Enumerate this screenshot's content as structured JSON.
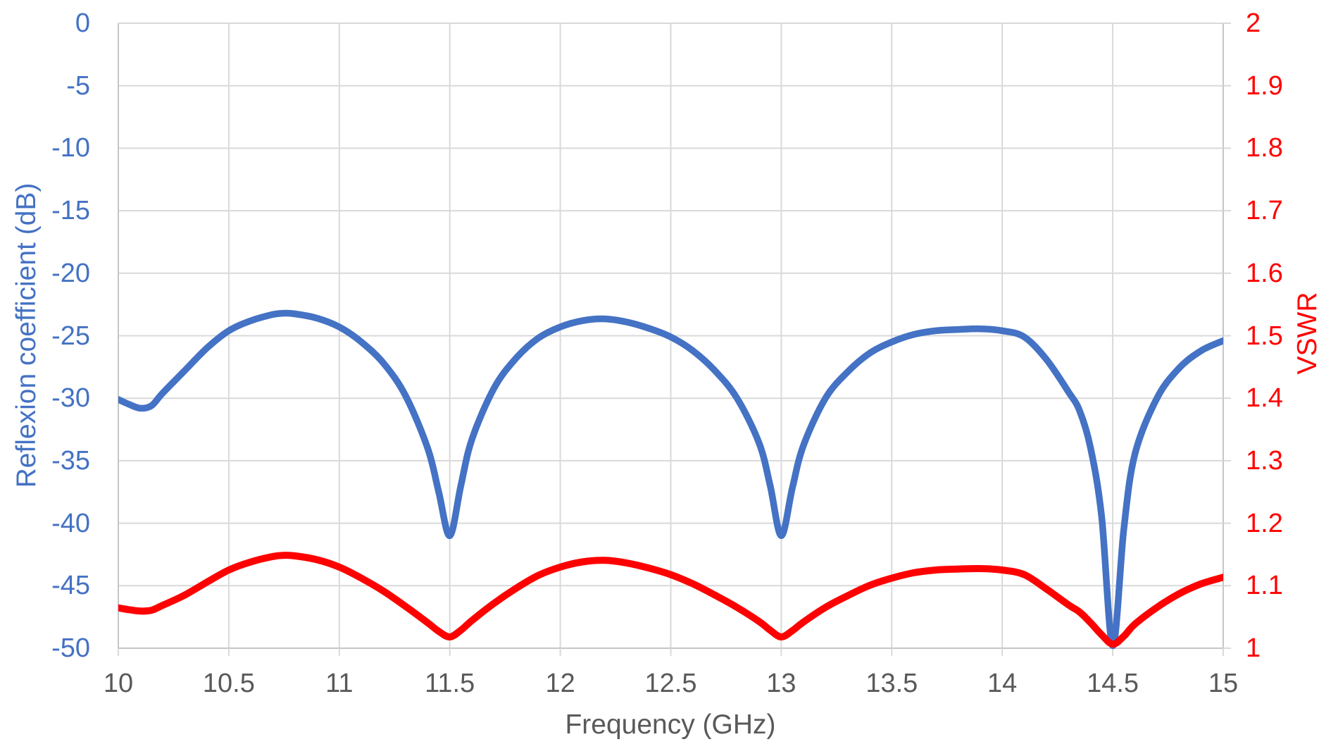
{
  "page": {
    "background": "#FFFFFF"
  },
  "chart_data": {
    "type": "line",
    "title": "",
    "grid": true,
    "legend": "none",
    "gridline_color": "#D9D9D9",
    "axis_line_color": "#C6C6C6",
    "x": {
      "title": "Frequency (GHz)",
      "min": 10,
      "max": 15,
      "tick_values": [
        10,
        10.5,
        11,
        11.5,
        12,
        12.5,
        13,
        13.5,
        14,
        14.5,
        15
      ],
      "tick_labels": [
        "10",
        "10.5",
        "11",
        "11.5",
        "12",
        "12.5",
        "13",
        "13.5",
        "14",
        "14.5",
        "15"
      ],
      "label_color": "#595959"
    },
    "y_left": {
      "title": "Reflexion coefficient (dB)",
      "min": -50,
      "max": 0,
      "tick_values": [
        0,
        -5,
        -10,
        -15,
        -20,
        -25,
        -30,
        -35,
        -40,
        -45,
        -50
      ],
      "tick_labels": [
        "0",
        "-5",
        "-10",
        "-15",
        "-20",
        "-25",
        "-30",
        "-35",
        "-40",
        "-45",
        "-50"
      ],
      "color": "#4472C4"
    },
    "y_right": {
      "title": "VSWR",
      "min": 1,
      "max": 2,
      "tick_values": [
        2,
        1.9,
        1.8,
        1.7,
        1.6,
        1.5,
        1.4,
        1.3,
        1.2,
        1.1,
        1
      ],
      "tick_labels": [
        "2",
        "1.9",
        "1.8",
        "1.7",
        "1.6",
        "1.5",
        "1.4",
        "1.3",
        "1.2",
        "1.1",
        "1"
      ],
      "color": "#FF0000"
    },
    "series": [
      {
        "name": "Reflexion coefficient (dB)",
        "axis": "left",
        "color": "#4472C4",
        "stroke_width": 9.5,
        "x": [
          10,
          10.05,
          10.1,
          10.15,
          10.2,
          10.3,
          10.4,
          10.5,
          10.6,
          10.7,
          10.75,
          10.8,
          10.9,
          11,
          11.1,
          11.2,
          11.3,
          11.4,
          11.45,
          11.5,
          11.55,
          11.6,
          11.7,
          11.8,
          11.9,
          12,
          12.1,
          12.2,
          12.3,
          12.4,
          12.5,
          12.6,
          12.7,
          12.8,
          12.9,
          12.95,
          13,
          13.05,
          13.1,
          13.2,
          13.3,
          13.4,
          13.5,
          13.6,
          13.7,
          13.8,
          13.9,
          14,
          14.1,
          14.2,
          14.3,
          14.35,
          14.4,
          14.45,
          14.5,
          14.55,
          14.6,
          14.7,
          14.8,
          14.9,
          15
        ],
        "y": [
          -30.1,
          -30.5,
          -30.8,
          -30.6,
          -29.6,
          -27.8,
          -26,
          -24.6,
          -23.8,
          -23.3,
          -23.2,
          -23.25,
          -23.6,
          -24.3,
          -25.5,
          -27.2,
          -29.8,
          -34,
          -37.5,
          -41,
          -37,
          -33.3,
          -29.2,
          -26.8,
          -25.2,
          -24.3,
          -23.8,
          -23.65,
          -23.9,
          -24.4,
          -25.1,
          -26.2,
          -27.8,
          -30,
          -33.6,
          -37,
          -41,
          -37.2,
          -33.8,
          -30,
          -27.9,
          -26.4,
          -25.5,
          -24.9,
          -24.6,
          -24.5,
          -24.45,
          -24.6,
          -25.1,
          -26.9,
          -29.5,
          -31,
          -34,
          -39.5,
          -49.8,
          -40.5,
          -34.5,
          -30,
          -27.6,
          -26.2,
          -25.4
        ]
      },
      {
        "name": "VSWR",
        "axis": "right",
        "color": "#FF0000",
        "stroke_width": 10,
        "x": [
          10,
          10.05,
          10.1,
          10.15,
          10.2,
          10.3,
          10.4,
          10.5,
          10.6,
          10.7,
          10.75,
          10.8,
          10.9,
          11,
          11.1,
          11.2,
          11.3,
          11.4,
          11.45,
          11.5,
          11.55,
          11.6,
          11.7,
          11.8,
          11.9,
          12,
          12.1,
          12.2,
          12.3,
          12.4,
          12.5,
          12.6,
          12.7,
          12.8,
          12.9,
          12.95,
          13,
          13.05,
          13.1,
          13.2,
          13.3,
          13.4,
          13.5,
          13.6,
          13.7,
          13.8,
          13.9,
          14,
          14.1,
          14.2,
          14.3,
          14.35,
          14.4,
          14.45,
          14.5,
          14.55,
          14.6,
          14.7,
          14.8,
          14.9,
          15
        ],
        "y": [
          1.0645,
          1.0615,
          1.0594,
          1.0608,
          1.0685,
          1.0849,
          1.1055,
          1.1251,
          1.1381,
          1.1468,
          1.1486,
          1.1477,
          1.1415,
          1.1298,
          1.1121,
          1.0913,
          1.0669,
          1.0407,
          1.027,
          1.018,
          1.0287,
          1.0442,
          1.0718,
          1.0958,
          1.1163,
          1.1298,
          1.1381,
          1.1406,
          1.1364,
          1.1283,
          1.1177,
          1.103,
          1.0849,
          1.0653,
          1.0427,
          1.0287,
          1.018,
          1.028,
          1.0417,
          1.0653,
          1.0839,
          1.1005,
          1.1121,
          1.1207,
          1.1251,
          1.1267,
          1.1274,
          1.1251,
          1.1177,
          1.0947,
          1.0693,
          1.058,
          1.0407,
          1.0214,
          1.0065,
          1.0191,
          1.0384,
          1.0653,
          1.087,
          1.103,
          1.1135
        ]
      }
    ]
  }
}
